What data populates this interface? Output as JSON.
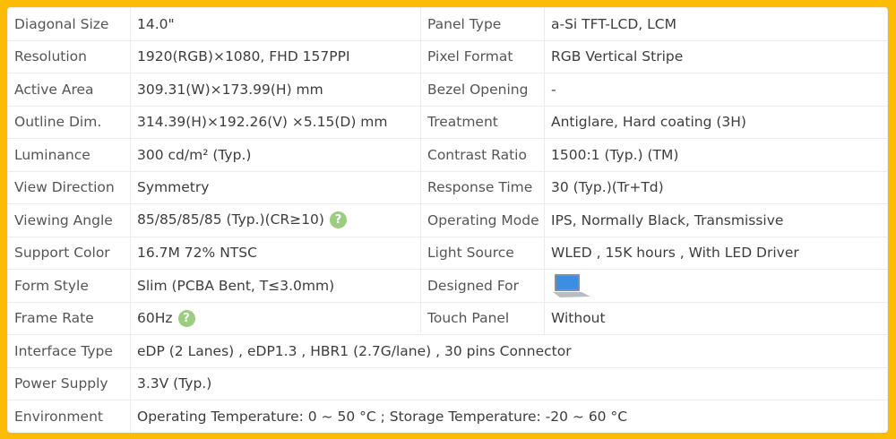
{
  "rows": [
    {
      "l1": "Diagonal Size",
      "v1": "14.0\"",
      "l2": "Panel Type",
      "v2": "a-Si TFT-LCD, LCM"
    },
    {
      "l1": "Resolution",
      "v1": "1920(RGB)×1080, FHD  157PPI",
      "l2": "Pixel Format",
      "v2": "RGB Vertical Stripe"
    },
    {
      "l1": "Active Area",
      "v1": "309.31(W)×173.99(H) mm",
      "l2": "Bezel Opening",
      "v2": "-"
    },
    {
      "l1": "Outline Dim.",
      "v1": "314.39(H)×192.26(V) ×5.15(D) mm",
      "l2": "Treatment",
      "v2": "Antiglare, Hard coating (3H)"
    },
    {
      "l1": "Luminance",
      "v1": "300 cd/m² (Typ.)",
      "l2": "Contrast Ratio",
      "v2": "1500:1 (Typ.) (TM)"
    },
    {
      "l1": "View Direction",
      "v1": "Symmetry",
      "l2": "Response Time",
      "v2": "30 (Typ.)(Tr+Td)"
    },
    {
      "l1": "Viewing Angle",
      "v1": "85/85/85/85 (Typ.)(CR≥10)",
      "l2": "Operating Mode",
      "v2": "IPS, Normally Black, Transmissive"
    },
    {
      "l1": "Support Color",
      "v1": "16.7M   72% NTSC",
      "l2": "Light Source",
      "v2": "WLED , 15K hours , With LED Driver"
    },
    {
      "l1": "Form Style",
      "v1": "Slim (PCBA Bent, T≤3.0mm)",
      "l2": "Designed For",
      "v2": ""
    },
    {
      "l1": "Frame Rate",
      "v1": "60Hz",
      "l2": "Touch Panel",
      "v2": "Without"
    },
    {
      "l1": "Interface Type",
      "v1": "eDP (2 Lanes) , eDP1.3 , HBR1 (2.7G/lane) , 30 pins Connector"
    },
    {
      "l1": "Power Supply",
      "v1": "3.3V (Typ.)"
    },
    {
      "l1": "Environment",
      "v1": "Operating Temperature: 0 ~ 50 °C ; Storage Temperature: -20 ~ 60 °C"
    }
  ],
  "help_icon": "?",
  "colors": {
    "border": "#fcbc06",
    "help": "#9ccc7f"
  }
}
